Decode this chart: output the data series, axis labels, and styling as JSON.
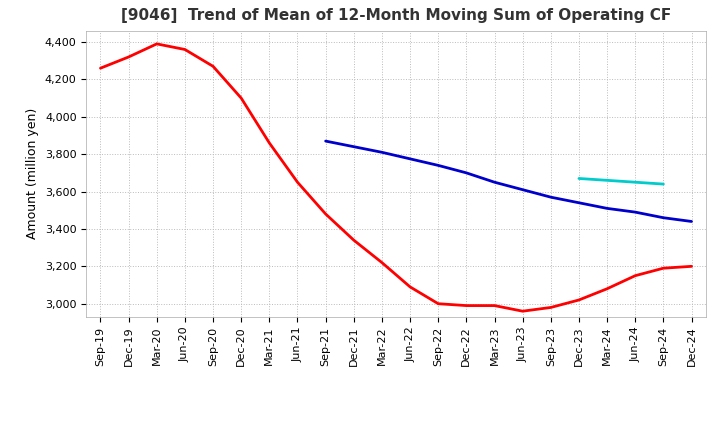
{
  "title": "[9046]  Trend of Mean of 12-Month Moving Sum of Operating CF",
  "ylabel": "Amount (million yen)",
  "ylim": [
    2930,
    4460
  ],
  "yticks": [
    3000,
    3200,
    3400,
    3600,
    3800,
    4000,
    4200,
    4400
  ],
  "x_labels": [
    "Sep-19",
    "Dec-19",
    "Mar-20",
    "Jun-20",
    "Sep-20",
    "Dec-20",
    "Mar-21",
    "Jun-21",
    "Sep-21",
    "Dec-21",
    "Mar-22",
    "Jun-22",
    "Sep-22",
    "Dec-22",
    "Mar-23",
    "Jun-23",
    "Sep-23",
    "Dec-23",
    "Mar-24",
    "Jun-24",
    "Sep-24",
    "Dec-24"
  ],
  "series": {
    "3 Years": {
      "color": "#ff0000",
      "data_x": [
        0,
        1,
        2,
        3,
        4,
        5,
        6,
        7,
        8,
        9,
        10,
        11,
        12,
        13,
        14,
        15,
        16,
        17,
        18,
        19,
        20,
        21
      ],
      "data_y": [
        4260,
        4320,
        4390,
        4360,
        4270,
        4100,
        3860,
        3650,
        3480,
        3340,
        3220,
        3090,
        3000,
        2990,
        2990,
        2960,
        2980,
        3020,
        3080,
        3150,
        3190,
        3200
      ]
    },
    "5 Years": {
      "color": "#0000cc",
      "data_x": [
        8,
        9,
        10,
        11,
        12,
        13,
        14,
        15,
        16,
        17,
        18,
        19,
        20,
        21
      ],
      "data_y": [
        3870,
        3840,
        3810,
        3775,
        3740,
        3700,
        3650,
        3610,
        3570,
        3540,
        3510,
        3490,
        3460,
        3440
      ]
    },
    "7 Years": {
      "color": "#00cccc",
      "data_x": [
        17,
        18,
        19,
        20
      ],
      "data_y": [
        3670,
        3660,
        3650,
        3640
      ]
    },
    "10 Years": {
      "color": "#008000",
      "data_x": [],
      "data_y": []
    }
  },
  "background_color": "#ffffff",
  "grid_color": "#bbbbbb",
  "title_fontsize": 11,
  "axis_fontsize": 9,
  "tick_fontsize": 8,
  "legend_fontsize": 9
}
